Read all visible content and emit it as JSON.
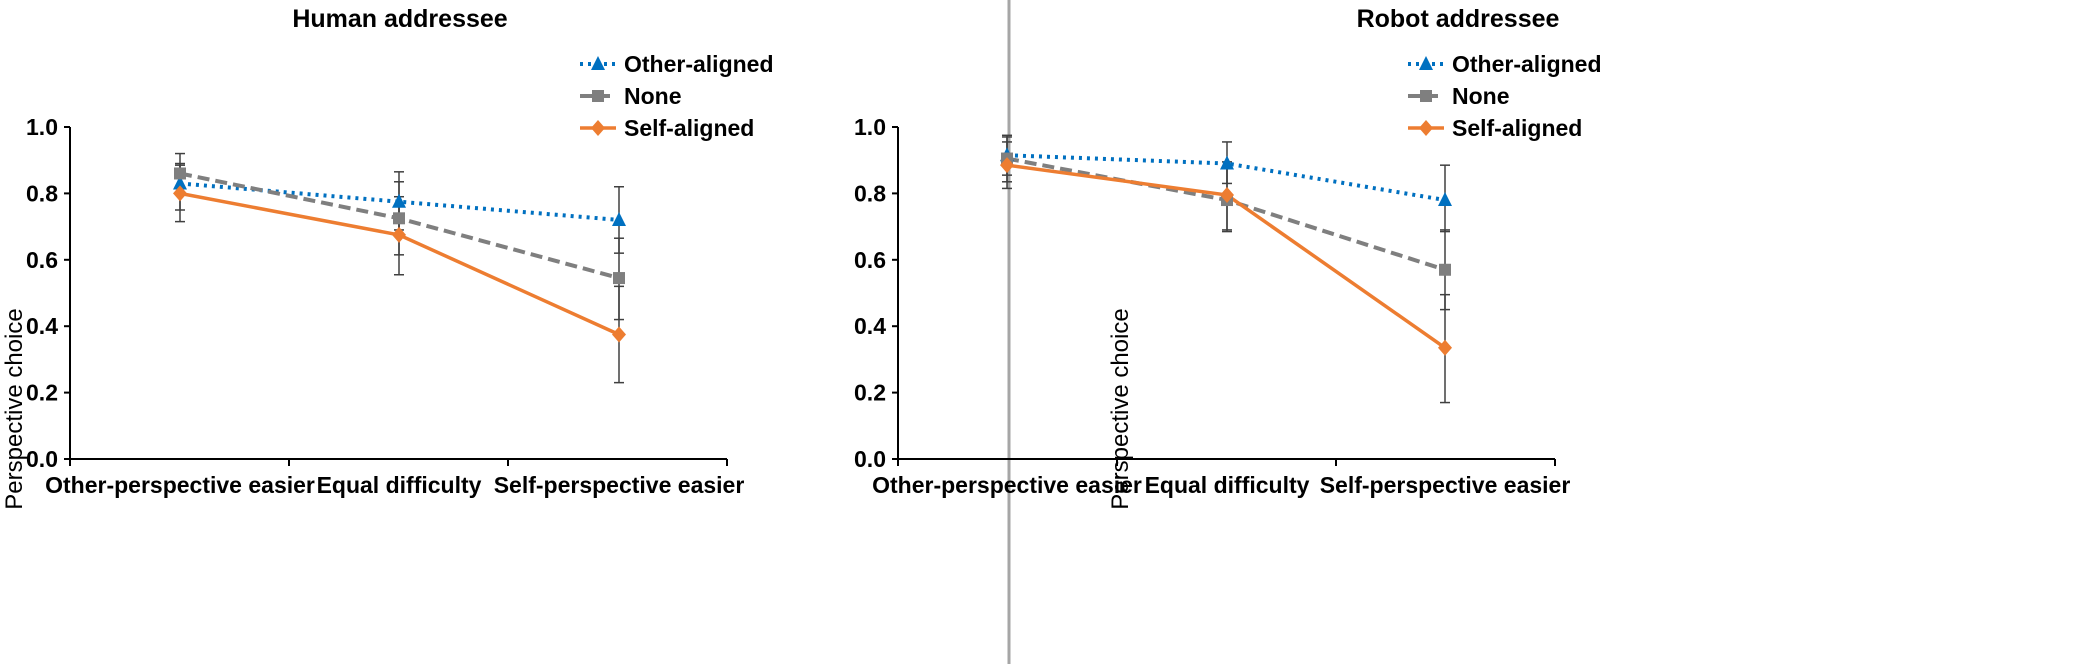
{
  "chart_data": [
    {
      "type": "line",
      "title": "Human addressee",
      "xlabel": "",
      "ylabel": "Perspective choice",
      "ylim": [
        0,
        1
      ],
      "yticks": [
        "0.0",
        "0.2",
        "0.4",
        "0.6",
        "0.8",
        "1.0"
      ],
      "categories": [
        "Other-perspective easier",
        "Equal difficulty",
        "Self-perspective easier"
      ],
      "legend_position": "top-right",
      "series": [
        {
          "name": "Other-aligned",
          "color": "#0070C0",
          "style": "dotted",
          "marker": "triangle",
          "values": [
            0.83,
            0.775,
            0.72
          ],
          "err_low": [
            0.75,
            0.69,
            0.62
          ],
          "err_high": [
            0.89,
            0.865,
            0.82
          ]
        },
        {
          "name": "None",
          "color": "#7F7F7F",
          "style": "dashed",
          "marker": "square",
          "values": [
            0.86,
            0.725,
            0.545
          ],
          "err_low": [
            0.8,
            0.615,
            0.42
          ],
          "err_high": [
            0.92,
            0.835,
            0.665
          ]
        },
        {
          "name": "Self-aligned",
          "color": "#ED7D31",
          "style": "solid",
          "marker": "diamond",
          "values": [
            0.8,
            0.675,
            0.375
          ],
          "err_low": [
            0.715,
            0.555,
            0.23
          ],
          "err_high": [
            0.885,
            0.79,
            0.52
          ]
        }
      ]
    },
    {
      "type": "line",
      "title": "Robot addressee",
      "xlabel": "",
      "ylabel": "Perspective choice",
      "ylim": [
        0,
        1
      ],
      "yticks": [
        "0.0",
        "0.2",
        "0.4",
        "0.6",
        "0.8",
        "1.0"
      ],
      "categories": [
        "Other-perspective easier",
        "Equal difficulty",
        "Self-perspective easier"
      ],
      "legend_position": "top-right",
      "series": [
        {
          "name": "Other-aligned",
          "color": "#0070C0",
          "style": "dotted",
          "marker": "triangle",
          "values": [
            0.915,
            0.89,
            0.78
          ],
          "err_low": [
            0.855,
            0.83,
            0.685
          ],
          "err_high": [
            0.975,
            0.955,
            0.885
          ]
        },
        {
          "name": "None",
          "color": "#7F7F7F",
          "style": "dashed",
          "marker": "square",
          "values": [
            0.905,
            0.78,
            0.57
          ],
          "err_low": [
            0.835,
            0.685,
            0.45
          ],
          "err_high": [
            0.97,
            0.875,
            0.69
          ]
        },
        {
          "name": "Self-aligned",
          "color": "#ED7D31",
          "style": "solid",
          "marker": "diamond",
          "values": [
            0.885,
            0.795,
            0.335
          ],
          "err_low": [
            0.815,
            0.69,
            0.17
          ],
          "err_high": [
            0.955,
            0.895,
            0.495
          ]
        }
      ]
    }
  ]
}
